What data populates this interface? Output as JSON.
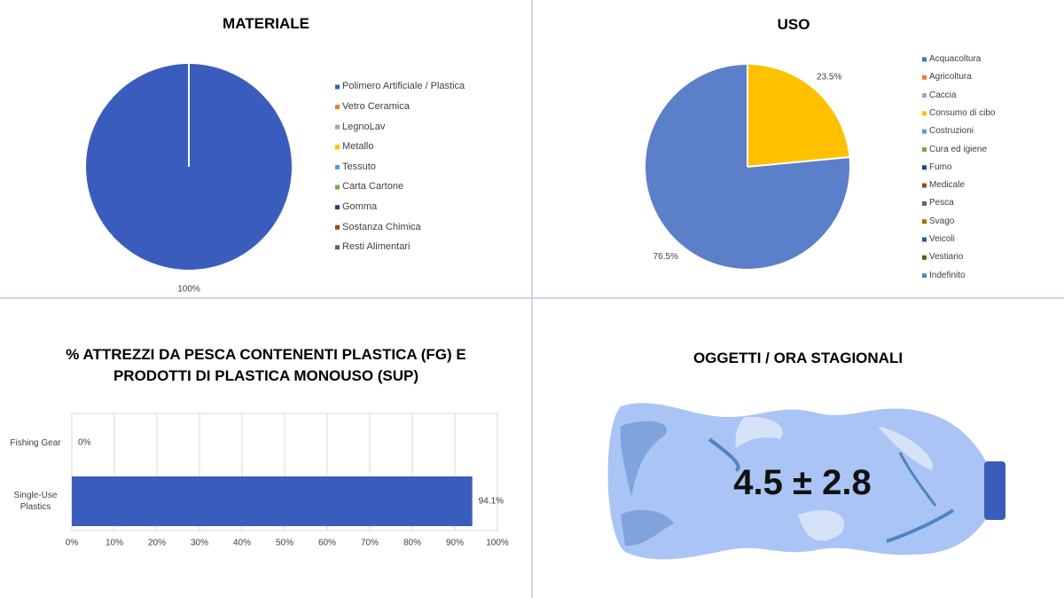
{
  "chart_data": [
    {
      "type": "pie",
      "title": "MATERIALE",
      "categories": [
        "Polimero Artificiale / Plastica",
        "Vetro Ceramica",
        "LegnoLav",
        "Metallo",
        "Tessuto",
        "Carta Cartone",
        "Gomma",
        "Sostanza Chimica",
        "Resti Alimentari"
      ],
      "values": [
        100,
        0,
        0,
        0,
        0,
        0,
        0,
        0,
        0
      ],
      "value_labels": [
        "100%",
        null,
        null,
        null,
        null,
        null,
        null,
        null,
        null
      ],
      "colors": [
        "#3a5dbd",
        "#ed7d31",
        "#a5a5a5",
        "#ffc000",
        "#5b9bd5",
        "#70ad47",
        "#264478",
        "#9e480e",
        "#636363"
      ],
      "legend": "right"
    },
    {
      "type": "pie",
      "title": "USO",
      "categories": [
        "Acquacoltura",
        "Agricoltura",
        "Caccia",
        "Consumo di cibo",
        "Costruzioni",
        "Cura ed igiene",
        "Fumo",
        "Medicale",
        "Pesca",
        "Svago",
        "Veicoli",
        "Vestiario",
        "Indefinito"
      ],
      "values": [
        0,
        0,
        0,
        23.5,
        0,
        0,
        0,
        0,
        0,
        0,
        0,
        0,
        76.5
      ],
      "value_labels": [
        null,
        null,
        null,
        "23.5%",
        null,
        null,
        null,
        null,
        null,
        null,
        null,
        null,
        "76.5%"
      ],
      "colors": [
        "#4472c4",
        "#ed7d31",
        "#a5a5a5",
        "#ffc000",
        "#5b9bd5",
        "#70ad47",
        "#264478",
        "#9e480e",
        "#636363",
        "#997300",
        "#255e91",
        "#43682b",
        "#5b7fc9"
      ],
      "legend": "right"
    },
    {
      "type": "hbar",
      "title": "% ATTREZZI DA PESCA CONTENENTI PLASTICA (FG) E PRODOTTI DI PLASTICA MONOUSO (SUP)",
      "categories": [
        "Fishing Gear",
        "Single-Use Plastics"
      ],
      "values": [
        0,
        94.1
      ],
      "value_labels": [
        "0%",
        "94.1%"
      ],
      "color": "#3a5dbd",
      "xlim": [
        0,
        100
      ],
      "xticks": [
        {
          "value": 0,
          "label": "0%"
        },
        {
          "value": 10,
          "label": "10%"
        },
        {
          "value": 20,
          "label": "20%"
        },
        {
          "value": 30,
          "label": "30%"
        },
        {
          "value": 40,
          "label": "40%"
        },
        {
          "value": 50,
          "label": "50%"
        },
        {
          "value": 60,
          "label": "60%"
        },
        {
          "value": 70,
          "label": "70%"
        },
        {
          "value": 80,
          "label": "80%"
        },
        {
          "value": 90,
          "label": "90%"
        },
        {
          "value": 100,
          "label": "100%"
        }
      ],
      "grid": true
    }
  ],
  "stat_panel": {
    "title": "OGGETTI / ORA STAGIONALI",
    "value": "4.5 ±  2.8"
  }
}
